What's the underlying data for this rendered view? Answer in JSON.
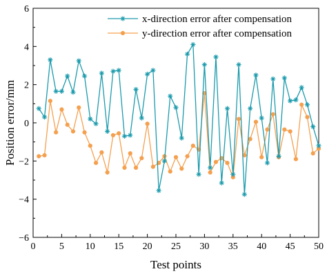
{
  "chart_data": {
    "type": "line",
    "xlabel": "Test points",
    "ylabel": "Position error/mm",
    "xlim": [
      0,
      50
    ],
    "ylim": [
      -6,
      6
    ],
    "x_ticks": [
      0,
      5,
      10,
      15,
      20,
      25,
      30,
      35,
      40,
      45,
      50
    ],
    "y_ticks": [
      -6,
      -4,
      -2,
      0,
      2,
      4,
      6
    ],
    "x_tick_labels": [
      "0",
      "5",
      "10",
      "15",
      "20",
      "25",
      "30",
      "35",
      "40",
      "45",
      "50"
    ],
    "y_tick_labels": [
      "−6",
      "−4",
      "−2",
      "0",
      "2",
      "4",
      "6"
    ],
    "grid": false,
    "legend_position": "top-right",
    "x": [
      1,
      2,
      3,
      4,
      5,
      6,
      7,
      8,
      9,
      10,
      11,
      12,
      13,
      14,
      15,
      16,
      17,
      18,
      19,
      20,
      21,
      22,
      23,
      24,
      25,
      26,
      27,
      28,
      29,
      30,
      31,
      32,
      33,
      34,
      35,
      36,
      37,
      38,
      39,
      40,
      41,
      42,
      43,
      44,
      45,
      46,
      47,
      48,
      49,
      50
    ],
    "series": [
      {
        "name": "x-direction error after compensation",
        "color": "#1a9aac",
        "marker": "asterisk",
        "values": [
          0.75,
          0.3,
          3.3,
          1.65,
          1.65,
          2.45,
          1.6,
          3.25,
          2.45,
          0.2,
          -0.05,
          2.6,
          -0.45,
          2.7,
          2.75,
          -0.7,
          -0.65,
          1.75,
          0.25,
          2.55,
          2.75,
          -3.55,
          -2.0,
          1.4,
          0.8,
          -0.8,
          3.6,
          4.1,
          -2.7,
          3.05,
          -2.35,
          3.45,
          -3.15,
          0.75,
          -2.7,
          3.05,
          -3.75,
          0.75,
          2.5,
          0.25,
          -2.1,
          2.3,
          -1.75,
          2.35,
          1.15,
          1.2,
          1.85,
          0.95,
          -0.2,
          -1.2
        ]
      },
      {
        "name": "y-direction error after compensation",
        "color": "#f5a04f",
        "marker": "circle",
        "values": [
          -1.75,
          -1.7,
          1.15,
          -0.5,
          0.7,
          -0.1,
          -0.45,
          0.8,
          -0.5,
          -1.2,
          -2.1,
          -1.55,
          -2.6,
          -0.65,
          -0.55,
          -2.35,
          -1.6,
          -2.35,
          -1.85,
          -0.05,
          -2.3,
          -2.1,
          -1.75,
          -2.55,
          -1.8,
          -2.4,
          -1.75,
          -1.2,
          -1.4,
          1.55,
          -2.6,
          -2.05,
          -1.85,
          -2.1,
          -2.85,
          0.2,
          -1.7,
          -0.85,
          0.05,
          -1.8,
          -0.35,
          0.45,
          -1.8,
          -0.35,
          -0.45,
          -1.9,
          0.95,
          0.3,
          -1.6,
          -1.35
        ]
      }
    ]
  }
}
